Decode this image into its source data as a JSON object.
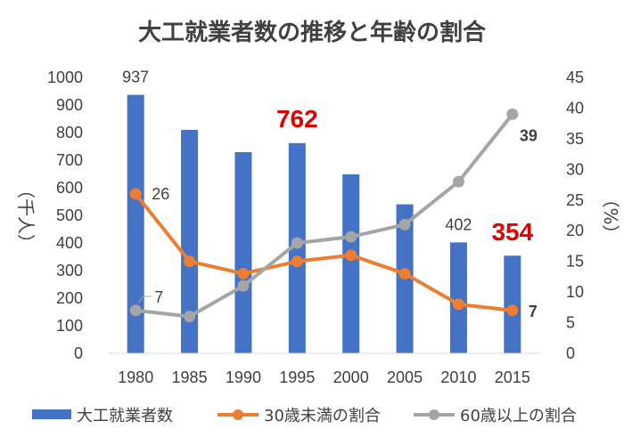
{
  "chart_data": {
    "type": "bar+line",
    "title": "大工就業者数の推移と年齢の割合",
    "categories": [
      "1980",
      "1985",
      "1990",
      "1995",
      "2000",
      "2005",
      "2010",
      "2015"
    ],
    "left_axis": {
      "label": "（千人）",
      "min": 0,
      "max": 1000,
      "step": 100,
      "ticks": [
        "0",
        "100",
        "200",
        "300",
        "400",
        "500",
        "600",
        "700",
        "800",
        "900",
        "1000"
      ]
    },
    "right_axis": {
      "label": "（%）",
      "min": 0,
      "max": 45,
      "step": 5,
      "ticks": [
        "0",
        "5",
        "10",
        "15",
        "20",
        "25",
        "30",
        "35",
        "40",
        "45"
      ]
    },
    "grid": false,
    "legend_position": "bottom",
    "series": [
      {
        "name": "大工就業者数",
        "type": "bar",
        "axis": "left",
        "color": "#4472c4",
        "values": [
          937,
          810,
          729,
          762,
          649,
          540,
          402,
          354
        ]
      },
      {
        "name": "30歳未満の割合",
        "type": "line",
        "axis": "right",
        "color": "#ed7d31",
        "values": [
          26,
          15,
          13,
          15,
          16,
          13,
          8,
          7
        ]
      },
      {
        "name": "60歳以上の割合",
        "type": "line",
        "axis": "right",
        "color": "#a5a5a5",
        "values": [
          7,
          6,
          11,
          18,
          19,
          21,
          28,
          39
        ]
      }
    ],
    "annotations": {
      "bar_label_1980": "937",
      "bar_label_2010": "402",
      "highlight_1995": "762",
      "highlight_2015": "354",
      "under30_label_1980": "26",
      "under30_label_2015": "7",
      "over60_label_1980": "7",
      "over60_label_2015": "39"
    }
  }
}
